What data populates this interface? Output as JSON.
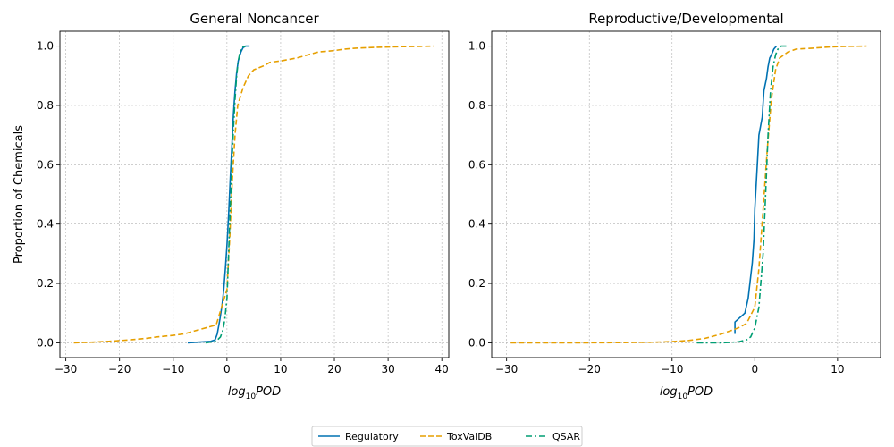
{
  "legend": {
    "placement": "bottom-center",
    "entries": [
      {
        "label": "Regulatory",
        "color": "#0072b2",
        "dash": "solid"
      },
      {
        "label": "ToxValDB",
        "color": "#e69f00",
        "dash": "dashed"
      },
      {
        "label": "QSAR",
        "color": "#009e73",
        "dash": "dashdot"
      }
    ]
  },
  "chart_data": [
    {
      "type": "line",
      "title": "General Noncancer",
      "xlabel_base": "log",
      "xlabel_sub": "10",
      "xlabel_rest": "POD",
      "ylabel": "Proportion of Chemicals",
      "xlim": [
        -31.1,
        41.3
      ],
      "ylim": [
        -0.05,
        1.05
      ],
      "xticks": [
        -30,
        -20,
        -10,
        0,
        10,
        20,
        30,
        40
      ],
      "xtick_labels": [
        "−30",
        "−20",
        "−10",
        "0",
        "10",
        "20",
        "30",
        "40"
      ],
      "yticks": [
        0.0,
        0.2,
        0.4,
        0.6,
        0.8,
        1.0
      ],
      "ytick_labels": [
        "0.0",
        "0.2",
        "0.4",
        "0.6",
        "0.8",
        "1.0"
      ],
      "grid": true,
      "series": [
        {
          "name": "Regulatory",
          "x": [
            -7.3,
            -3.0,
            -2.2,
            -1.8,
            -1.3,
            -0.9,
            -0.6,
            -0.3,
            0.0,
            0.3,
            0.6,
            0.9,
            1.2,
            1.5,
            1.8,
            2.1,
            2.6,
            3.0,
            3.5,
            4.2
          ],
          "y": [
            0.0,
            0.005,
            0.01,
            0.03,
            0.08,
            0.13,
            0.18,
            0.25,
            0.33,
            0.43,
            0.55,
            0.66,
            0.77,
            0.85,
            0.91,
            0.95,
            0.98,
            0.995,
            1.0,
            1.0
          ]
        },
        {
          "name": "ToxValDB",
          "x": [
            -28.5,
            -25,
            -22,
            -18,
            -15,
            -13,
            -10,
            -8,
            -6,
            -4,
            -2,
            0.0,
            0.5,
            1.0,
            1.5,
            2.0,
            3.0,
            4.0,
            5.0,
            7.0,
            8.0,
            10.0,
            13.0,
            15.0,
            17.0,
            20.0,
            22.0,
            24.0,
            28.0,
            32.0,
            36.0,
            38.5
          ],
          "y": [
            0.0,
            0.002,
            0.005,
            0.01,
            0.015,
            0.02,
            0.025,
            0.03,
            0.04,
            0.05,
            0.06,
            0.18,
            0.35,
            0.55,
            0.7,
            0.8,
            0.86,
            0.9,
            0.92,
            0.935,
            0.945,
            0.95,
            0.96,
            0.97,
            0.98,
            0.985,
            0.99,
            0.993,
            0.996,
            0.998,
            0.999,
            1.0
          ]
        },
        {
          "name": "QSAR",
          "x": [
            -4.0,
            -2.0,
            -1.2,
            -0.8,
            -0.4,
            0.0,
            0.3,
            0.6,
            0.9,
            1.2,
            1.5,
            1.8,
            2.1,
            2.5,
            3.0,
            3.5
          ],
          "y": [
            0.0,
            0.005,
            0.02,
            0.04,
            0.08,
            0.15,
            0.3,
            0.45,
            0.6,
            0.72,
            0.82,
            0.9,
            0.95,
            0.985,
            0.998,
            1.0
          ]
        }
      ]
    },
    {
      "type": "line",
      "title": "Reproductive/Developmental",
      "xlabel_base": "log",
      "xlabel_sub": "10",
      "xlabel_rest": "POD",
      "ylabel": "",
      "xlim": [
        -31.8,
        15.2
      ],
      "ylim": [
        -0.05,
        1.05
      ],
      "xticks": [
        -30,
        -20,
        -10,
        0,
        10
      ],
      "xtick_labels": [
        "−30",
        "−20",
        "−10",
        "0",
        "10"
      ],
      "yticks": [
        0.0,
        0.2,
        0.4,
        0.6,
        0.8,
        1.0
      ],
      "ytick_labels": [
        "0.0",
        "0.2",
        "0.4",
        "0.6",
        "0.8",
        "1.0"
      ],
      "grid": true,
      "series": [
        {
          "name": "Regulatory",
          "x": [
            -2.4,
            -2.4,
            -1.2,
            -0.8,
            -0.6,
            -0.3,
            -0.1,
            0.0,
            0.3,
            0.5,
            0.9,
            1.1,
            1.4,
            1.6,
            1.8,
            2.0,
            2.3,
            2.6
          ],
          "y": [
            0.03,
            0.07,
            0.1,
            0.15,
            0.2,
            0.27,
            0.35,
            0.45,
            0.6,
            0.7,
            0.76,
            0.85,
            0.89,
            0.93,
            0.96,
            0.97,
            0.99,
            1.0
          ]
        },
        {
          "name": "ToxValDB",
          "x": [
            -29.5,
            -25,
            -20,
            -15,
            -12,
            -10,
            -8,
            -6,
            -4,
            -2,
            -1,
            0.0,
            0.5,
            1.0,
            1.5,
            2.0,
            2.5,
            3.0,
            4.0,
            5.0,
            7.0,
            9.0,
            11.0,
            13.5
          ],
          "y": [
            0.0,
            0.0,
            0.0,
            0.001,
            0.002,
            0.004,
            0.008,
            0.015,
            0.03,
            0.05,
            0.065,
            0.12,
            0.25,
            0.45,
            0.65,
            0.82,
            0.92,
            0.96,
            0.98,
            0.99,
            0.993,
            0.997,
            0.999,
            1.0
          ]
        },
        {
          "name": "QSAR",
          "x": [
            -7.0,
            -4.0,
            -2.0,
            -1.0,
            -0.5,
            0.0,
            0.5,
            1.0,
            1.3,
            1.6,
            1.9,
            2.2,
            2.5,
            2.8,
            3.2,
            3.8
          ],
          "y": [
            0.0,
            0.0,
            0.003,
            0.01,
            0.02,
            0.05,
            0.12,
            0.3,
            0.5,
            0.7,
            0.85,
            0.93,
            0.97,
            0.99,
            1.0,
            1.0
          ]
        }
      ]
    }
  ]
}
